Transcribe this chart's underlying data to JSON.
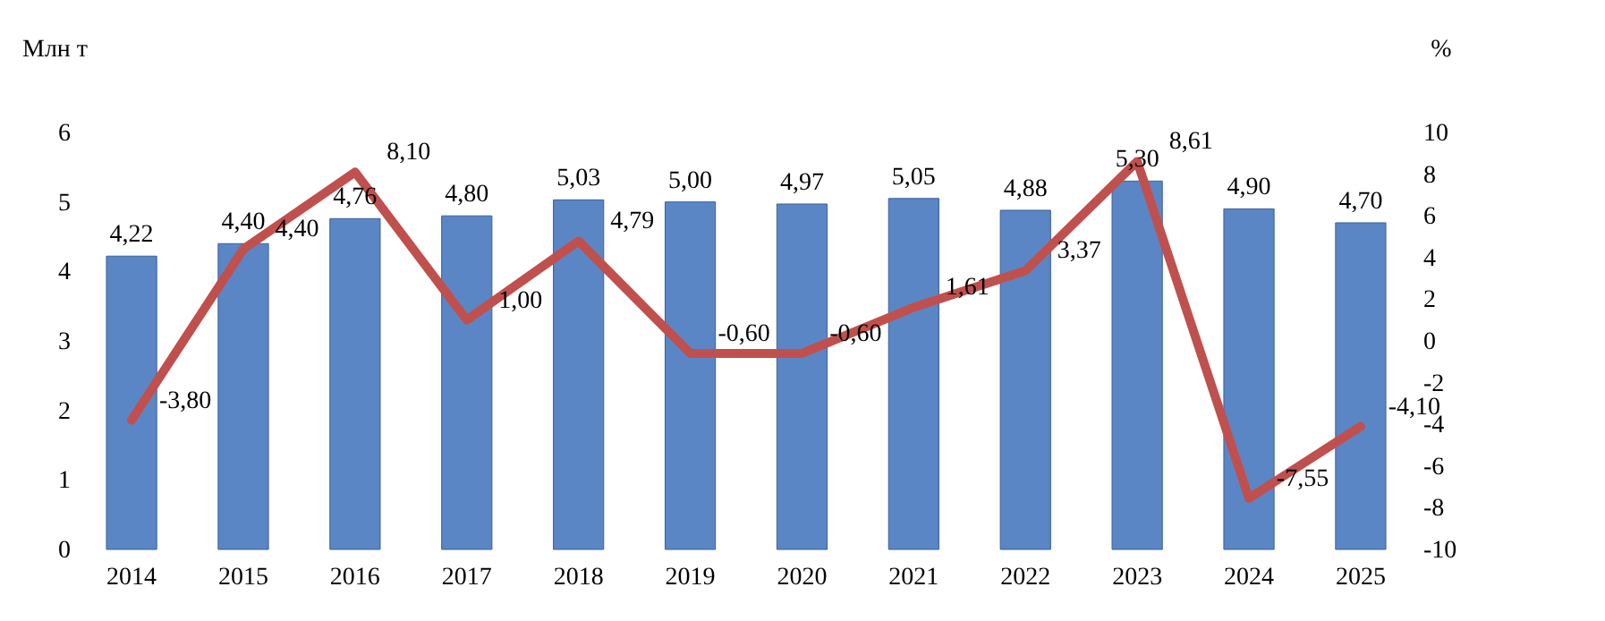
{
  "chart_data": {
    "type": "bar",
    "ylabel": "Млн т",
    "y2label": "%",
    "categories": [
      "2014",
      "2015",
      "2016",
      "2017",
      "2018",
      "2019",
      "2020",
      "2021",
      "2022",
      "2023",
      "2024",
      "2025"
    ],
    "series": [
      {
        "color": "#5b86c5",
        "values": [
          4.22,
          4.4,
          4.76,
          4.8,
          5.03,
          5.0,
          4.97,
          5.05,
          4.88,
          5.3,
          4.9,
          4.7
        ],
        "value_labels": [
          "4,22",
          "4,40",
          "4,76",
          "4,80",
          "5,03",
          "5,00",
          "4,97",
          "5,05",
          "4,88",
          "5,30",
          "4,90",
          "4,70"
        ]
      },
      {
        "type": "line",
        "axis": "y2",
        "color": "#c0504d",
        "values": [
          -3.8,
          4.4,
          8.1,
          1.0,
          4.79,
          -0.6,
          -0.6,
          1.61,
          3.37,
          8.61,
          -7.55,
          -4.1
        ],
        "value_labels": [
          "-3,80",
          "4,40",
          "8,10",
          "1,00",
          "4,79",
          "-0,60",
          "-0,60",
          "1,61",
          "3,37",
          "8,61",
          "-7,55",
          "-4,10"
        ]
      }
    ],
    "ylim": [
      0,
      6
    ],
    "yticks": [
      0,
      1,
      2,
      3,
      4,
      5,
      6
    ],
    "y2lim": [
      -10,
      10
    ],
    "y2ticks": [
      -10,
      -8,
      -6,
      -4,
      -2,
      0,
      2,
      4,
      6,
      8,
      10
    ],
    "grid": false
  }
}
